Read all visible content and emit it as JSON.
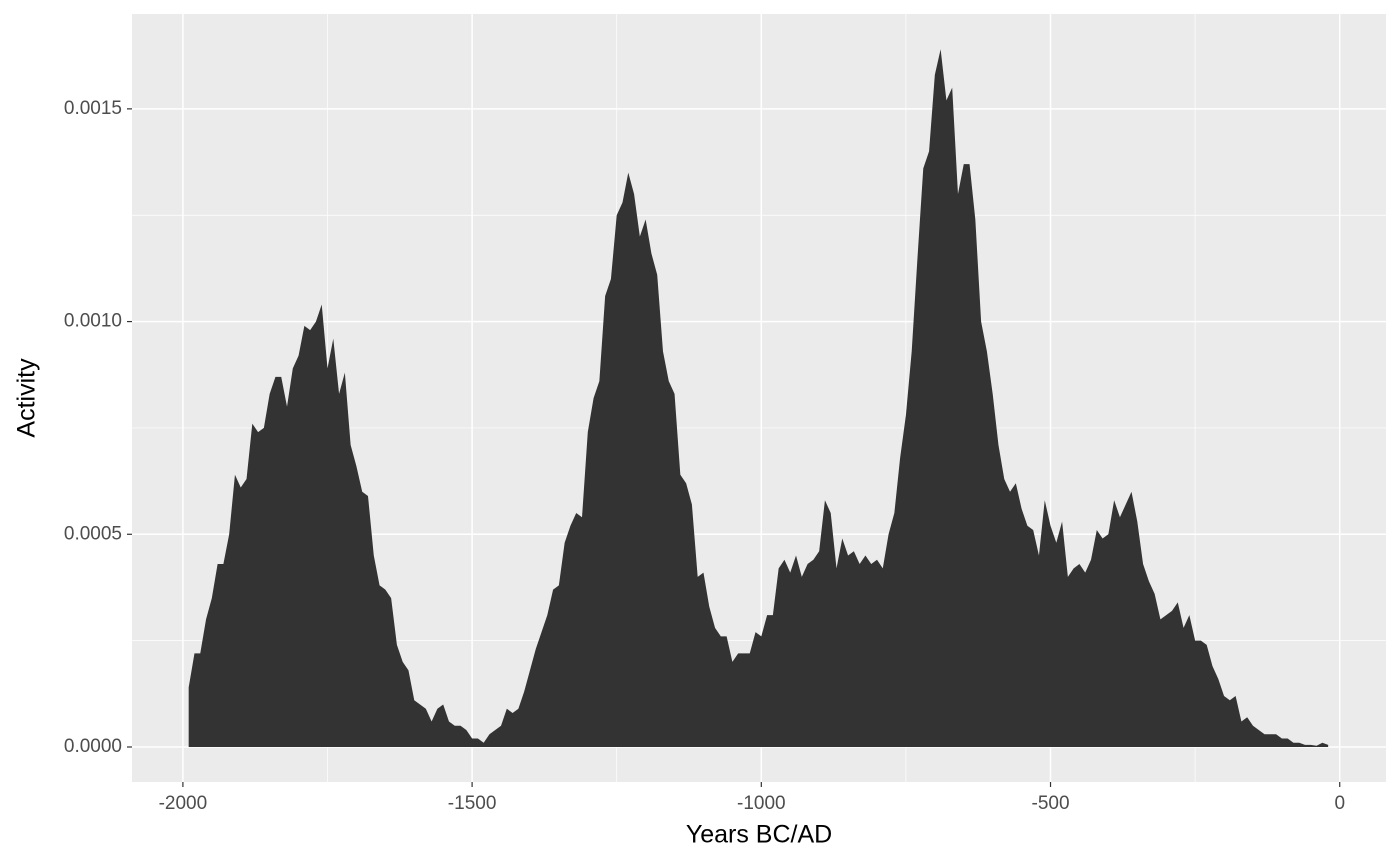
{
  "chart_data": {
    "type": "area",
    "x_label": "Years BC/AD",
    "y_label": "Activity",
    "color": "#333333",
    "xlim": [
      -2088,
      80
    ],
    "ylim": [
      -8.23e-05,
      0.001723
    ],
    "xticks": [
      -2000,
      -1500,
      -1000,
      -500,
      0
    ],
    "yticks": [
      {
        "value": 0,
        "label": "0.0000"
      },
      {
        "value": 0.0005,
        "label": "0.0005"
      },
      {
        "value": 0.001,
        "label": "0.0010"
      },
      {
        "value": 0.0015,
        "label": "0.0015"
      }
    ],
    "grid": true,
    "x": [
      -1990,
      -1980,
      -1970,
      -1960,
      -1950,
      -1940,
      -1930,
      -1920,
      -1910,
      -1900,
      -1890,
      -1880,
      -1870,
      -1860,
      -1850,
      -1840,
      -1830,
      -1820,
      -1810,
      -1800,
      -1790,
      -1780,
      -1770,
      -1760,
      -1750,
      -1740,
      -1730,
      -1720,
      -1710,
      -1700,
      -1690,
      -1680,
      -1670,
      -1660,
      -1650,
      -1640,
      -1630,
      -1620,
      -1610,
      -1600,
      -1590,
      -1580,
      -1570,
      -1560,
      -1550,
      -1540,
      -1530,
      -1520,
      -1510,
      -1500,
      -1490,
      -1480,
      -1470,
      -1460,
      -1450,
      -1440,
      -1430,
      -1420,
      -1410,
      -1400,
      -1390,
      -1380,
      -1370,
      -1360,
      -1350,
      -1340,
      -1330,
      -1320,
      -1310,
      -1300,
      -1290,
      -1280,
      -1270,
      -1260,
      -1250,
      -1240,
      -1230,
      -1220,
      -1210,
      -1200,
      -1190,
      -1180,
      -1170,
      -1160,
      -1150,
      -1140,
      -1130,
      -1120,
      -1110,
      -1100,
      -1090,
      -1080,
      -1070,
      -1060,
      -1050,
      -1040,
      -1030,
      -1020,
      -1010,
      -1000,
      -990,
      -980,
      -970,
      -960,
      -950,
      -940,
      -930,
      -920,
      -910,
      -900,
      -890,
      -880,
      -870,
      -860,
      -850,
      -840,
      -830,
      -820,
      -810,
      -800,
      -790,
      -780,
      -770,
      -760,
      -750,
      -740,
      -730,
      -720,
      -710,
      -700,
      -690,
      -680,
      -670,
      -660,
      -650,
      -640,
      -630,
      -620,
      -610,
      -600,
      -590,
      -580,
      -570,
      -560,
      -550,
      -540,
      -530,
      -520,
      -510,
      -500,
      -490,
      -480,
      -470,
      -460,
      -450,
      -440,
      -430,
      -420,
      -410,
      -400,
      -390,
      -380,
      -370,
      -360,
      -350,
      -340,
      -330,
      -320,
      -310,
      -300,
      -290,
      -280,
      -270,
      -260,
      -250,
      -240,
      -230,
      -220,
      -210,
      -200,
      -190,
      -180,
      -170,
      -160,
      -150,
      -140,
      -130,
      -120,
      -110,
      -100,
      -90,
      -80,
      -70,
      -60,
      -50,
      -40,
      -30,
      -20
    ],
    "values": [
      0.00014,
      0.00022,
      0.00022,
      0.0003,
      0.00035,
      0.00043,
      0.00043,
      0.0005,
      0.00064,
      0.00061,
      0.00063,
      0.00076,
      0.00074,
      0.00075,
      0.00083,
      0.00087,
      0.00087,
      0.0008,
      0.00089,
      0.00092,
      0.00099,
      0.00098,
      0.001,
      0.00104,
      0.00089,
      0.00096,
      0.00083,
      0.00088,
      0.00071,
      0.00066,
      0.0006,
      0.00059,
      0.00045,
      0.00038,
      0.00037,
      0.00035,
      0.00024,
      0.0002,
      0.00018,
      0.00011,
      0.0001,
      9e-05,
      6e-05,
      9e-05,
      0.0001,
      6e-05,
      5e-05,
      5e-05,
      4e-05,
      2e-05,
      2e-05,
      1e-05,
      3e-05,
      4e-05,
      5e-05,
      9e-05,
      8e-05,
      9e-05,
      0.00013,
      0.00018,
      0.00023,
      0.00027,
      0.00031,
      0.00037,
      0.00038,
      0.00048,
      0.00052,
      0.00055,
      0.00054,
      0.00074,
      0.00082,
      0.00086,
      0.00106,
      0.0011,
      0.00125,
      0.00128,
      0.00135,
      0.0013,
      0.0012,
      0.00124,
      0.00116,
      0.00111,
      0.00093,
      0.00086,
      0.00083,
      0.00064,
      0.00062,
      0.00057,
      0.0004,
      0.00041,
      0.00033,
      0.00028,
      0.00026,
      0.00026,
      0.0002,
      0.00022,
      0.00022,
      0.00022,
      0.00027,
      0.00026,
      0.00031,
      0.00031,
      0.00042,
      0.00044,
      0.00041,
      0.00045,
      0.0004,
      0.00043,
      0.00044,
      0.00046,
      0.00058,
      0.00055,
      0.00042,
      0.00049,
      0.00045,
      0.00046,
      0.00043,
      0.00045,
      0.00043,
      0.00044,
      0.00042,
      0.0005,
      0.00055,
      0.00068,
      0.00078,
      0.00093,
      0.00115,
      0.00136,
      0.0014,
      0.00158,
      0.00164,
      0.00152,
      0.00155,
      0.0013,
      0.00137,
      0.00137,
      0.00124,
      0.001,
      0.00093,
      0.00083,
      0.00071,
      0.00063,
      0.0006,
      0.00062,
      0.00056,
      0.00052,
      0.00051,
      0.00045,
      0.00058,
      0.00052,
      0.00048,
      0.00053,
      0.0004,
      0.00042,
      0.00043,
      0.00041,
      0.00044,
      0.00051,
      0.00049,
      0.0005,
      0.00058,
      0.00054,
      0.00057,
      0.0006,
      0.00053,
      0.00043,
      0.00039,
      0.00036,
      0.0003,
      0.00031,
      0.00032,
      0.00034,
      0.00028,
      0.00031,
      0.00025,
      0.00025,
      0.00024,
      0.00019,
      0.00016,
      0.00012,
      0.00011,
      0.00012,
      6e-05,
      7e-05,
      5e-05,
      4e-05,
      3e-05,
      3e-05,
      3e-05,
      2e-05,
      2e-05,
      1e-05,
      1e-05,
      5e-06,
      5e-06,
      3e-06,
      1e-05,
      5e-06
    ]
  }
}
